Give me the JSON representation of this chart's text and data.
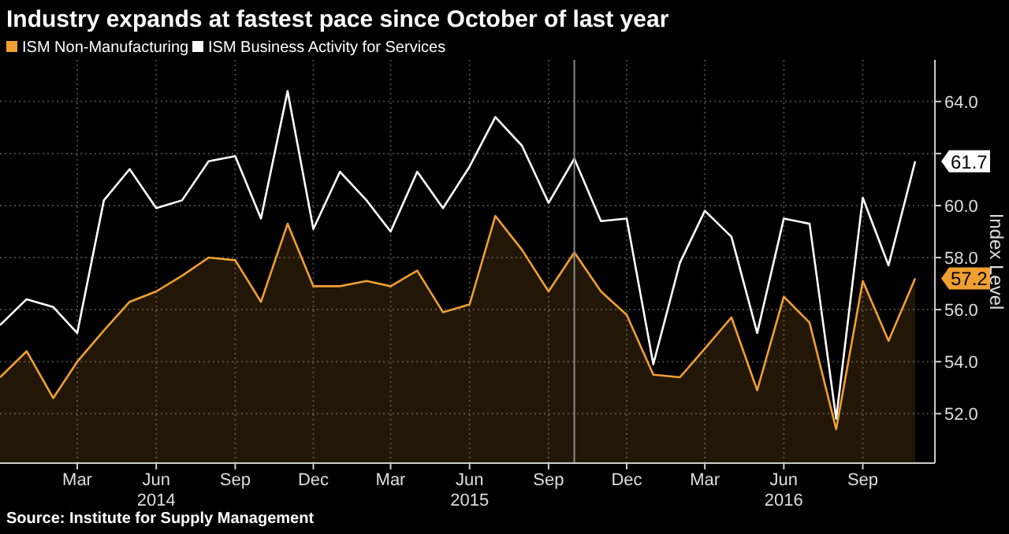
{
  "chart_data": {
    "type": "line",
    "title": "Industry expands at fastest pace since October of last year",
    "ylabel": "Index Level",
    "x": [
      "2013-12",
      "2014-01",
      "2014-02",
      "2014-03",
      "2014-04",
      "2014-05",
      "2014-06",
      "2014-07",
      "2014-08",
      "2014-09",
      "2014-10",
      "2014-11",
      "2014-12",
      "2015-01",
      "2015-02",
      "2015-03",
      "2015-04",
      "2015-05",
      "2015-06",
      "2015-07",
      "2015-08",
      "2015-09",
      "2015-10",
      "2015-11",
      "2015-12",
      "2016-01",
      "2016-02",
      "2016-03",
      "2016-04",
      "2016-05",
      "2016-06",
      "2016-07",
      "2016-08",
      "2016-09",
      "2016-10",
      "2016-11"
    ],
    "series": [
      {
        "name": "ISM Non-Manufacturing",
        "type": "area",
        "color": "#f0a030",
        "values": [
          53.4,
          54.4,
          52.6,
          54.0,
          55.2,
          56.3,
          56.7,
          57.3,
          58.0,
          57.9,
          56.3,
          59.3,
          56.9,
          56.9,
          57.1,
          56.9,
          57.5,
          55.9,
          56.2,
          59.6,
          58.3,
          56.7,
          58.2,
          56.7,
          55.8,
          53.5,
          53.4,
          54.5,
          55.7,
          52.9,
          56.5,
          55.5,
          51.4,
          57.1,
          54.8,
          57.2
        ],
        "value_labels": [
          null,
          null,
          null,
          null,
          null,
          null,
          null,
          null,
          null,
          null,
          null,
          null,
          null,
          null,
          null,
          null,
          null,
          null,
          null,
          null,
          null,
          null,
          null,
          null,
          null,
          null,
          null,
          null,
          null,
          null,
          null,
          null,
          null,
          null,
          null,
          "57.2"
        ]
      },
      {
        "name": "ISM Business Activity for Services",
        "color": "#ffffff",
        "values": [
          55.4,
          56.4,
          56.1,
          55.1,
          60.2,
          61.4,
          59.9,
          60.2,
          61.7,
          61.9,
          59.5,
          64.4,
          59.1,
          61.3,
          60.2,
          59.0,
          61.3,
          59.9,
          61.5,
          63.4,
          62.3,
          60.1,
          61.8,
          59.4,
          59.5,
          53.9,
          57.8,
          59.8,
          58.8,
          55.1,
          59.5,
          59.3,
          51.8,
          60.3,
          57.7,
          61.7
        ],
        "value_labels": [
          null,
          null,
          null,
          null,
          null,
          null,
          null,
          null,
          null,
          null,
          null,
          null,
          null,
          null,
          null,
          null,
          null,
          null,
          null,
          null,
          null,
          null,
          null,
          null,
          null,
          null,
          null,
          null,
          null,
          null,
          null,
          null,
          null,
          null,
          null,
          "61.7"
        ]
      }
    ],
    "xlim": [
      "2013-12",
      "2016-11-24"
    ],
    "xticks": [
      {
        "value": "2014-03",
        "label": "Mar"
      },
      {
        "value": "2014-06",
        "label": "Jun\n2014"
      },
      {
        "value": "2014-09",
        "label": "Sep"
      },
      {
        "value": "2014-12",
        "label": "Dec"
      },
      {
        "value": "2015-03",
        "label": "Mar"
      },
      {
        "value": "2015-06",
        "label": "Jun\n2015"
      },
      {
        "value": "2015-09",
        "label": "Sep"
      },
      {
        "value": "2015-12",
        "label": "Dec"
      },
      {
        "value": "2016-03",
        "label": "Mar"
      },
      {
        "value": "2016-06",
        "label": "Jun\n2016"
      },
      {
        "value": "2016-09",
        "label": "Sep"
      }
    ],
    "ylim": [
      50.1,
      65.6
    ],
    "yticks": [
      {
        "value": 52,
        "label": "52.0"
      },
      {
        "value": 54,
        "label": "54.0"
      },
      {
        "value": 56,
        "label": "56.0"
      },
      {
        "value": 58,
        "label": "58.0"
      },
      {
        "value": 60,
        "label": "60.0"
      },
      {
        "value": 62,
        "label": null
      },
      {
        "value": 64,
        "label": "64.0"
      }
    ],
    "ref_lines": [
      {
        "axis": "x",
        "value": "2015-10",
        "color": "#8a8a8a"
      }
    ],
    "grid": true,
    "legend": "top left",
    "annotations": [
      "Source: Institute for Supply Management"
    ]
  }
}
